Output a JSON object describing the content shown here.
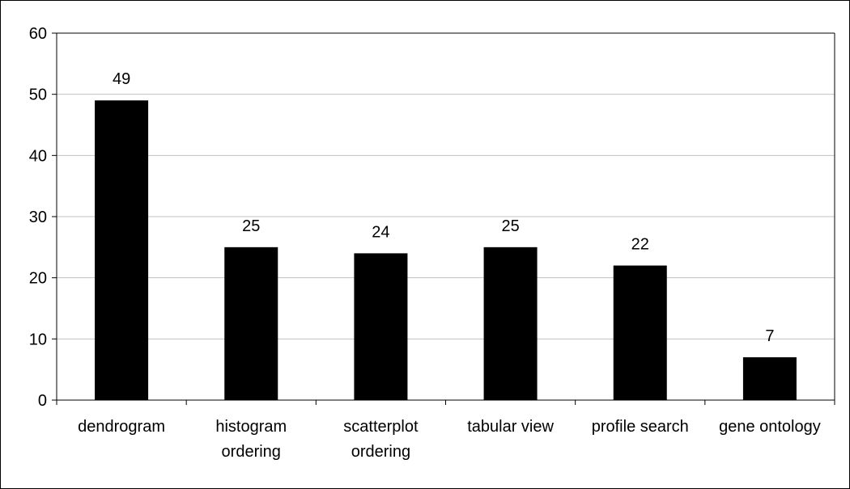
{
  "chart_data": {
    "type": "bar",
    "title": "",
    "xlabel": "",
    "ylabel": "",
    "categories": [
      [
        "dendrogram"
      ],
      [
        "histogram",
        "ordering"
      ],
      [
        "scatterplot",
        "ordering"
      ],
      [
        "tabular view"
      ],
      [
        "profile search"
      ],
      [
        "gene ontology"
      ]
    ],
    "values": [
      49,
      25,
      24,
      25,
      22,
      7
    ],
    "data_labels": [
      "49",
      "25",
      "24",
      "25",
      "22",
      "7"
    ],
    "ylim": [
      0,
      60
    ],
    "yticks": [
      0,
      10,
      20,
      30,
      40,
      50,
      60
    ],
    "grid": true,
    "legend": "none",
    "bar_color": "#000000",
    "grid_color": "#c0c0c0"
  }
}
